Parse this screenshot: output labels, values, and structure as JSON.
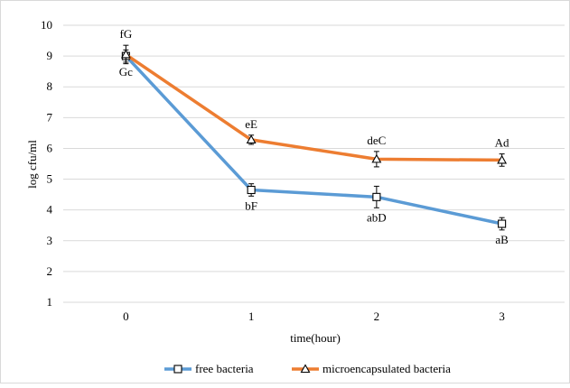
{
  "chart_data": {
    "type": "line",
    "title": "",
    "xlabel": "time(hour)",
    "ylabel": "log cfu/ml",
    "x": [
      0,
      1,
      2,
      3
    ],
    "x_tick_labels": [
      "0",
      "1",
      "2",
      "3"
    ],
    "ylim": [
      1,
      10
    ],
    "y_ticks": [
      1,
      2,
      3,
      4,
      5,
      6,
      7,
      8,
      9,
      10
    ],
    "grid": "horizontal",
    "legend_position": "bottom",
    "series": [
      {
        "name": "free bacteria",
        "marker": "square",
        "color": "#5B9BD5",
        "values": [
          9.0,
          4.65,
          4.42,
          3.55
        ],
        "error": [
          0.2,
          0.2,
          0.35,
          0.2
        ],
        "labels": [
          "Gc",
          "bF",
          "abD",
          "aB"
        ]
      },
      {
        "name": "microencapsulated bacteria",
        "marker": "triangle",
        "color": "#ED7D31",
        "values": [
          9.05,
          6.28,
          5.65,
          5.62
        ],
        "error": [
          0.3,
          0.15,
          0.25,
          0.2
        ],
        "labels": [
          "fG",
          "eE",
          "deC",
          "Ad"
        ]
      }
    ]
  }
}
